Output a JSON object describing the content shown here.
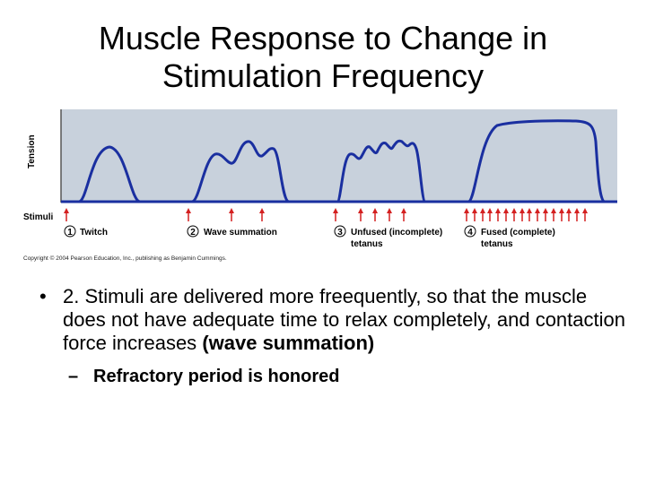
{
  "slide": {
    "title_line1": "Muscle Response to Change in",
    "title_line2": "Stimulation Frequency"
  },
  "figure": {
    "y_axis_label": "Tension",
    "stimuli_label": "Stimuli",
    "panels": [
      {
        "number": "1",
        "label_line1": "Twitch",
        "label_line2": ""
      },
      {
        "number": "2",
        "label_line1": "Wave summation",
        "label_line2": ""
      },
      {
        "number": "3",
        "label_line1": "Unfused (incomplete)",
        "label_line2": "tetanus"
      },
      {
        "number": "4",
        "label_line1": "Fused (complete)",
        "label_line2": "tetanus"
      }
    ],
    "copyright": "Copyright © 2004 Pearson Education, Inc., publishing as Benjamin Cummings.",
    "colors": {
      "panel_bg": "#c8d1dc",
      "trace": "#1a2fa0",
      "arrow": "#d42020"
    }
  },
  "body": {
    "bullet_marker": "•",
    "bullet_text": "2. Stimuli are delivered more freequently, so that the muscle does not have adequate time to relax completely, and contaction force increases",
    "bullet_bold": "(wave summation)",
    "sub_marker": "–",
    "sub_text": "Refractory period is honored"
  }
}
